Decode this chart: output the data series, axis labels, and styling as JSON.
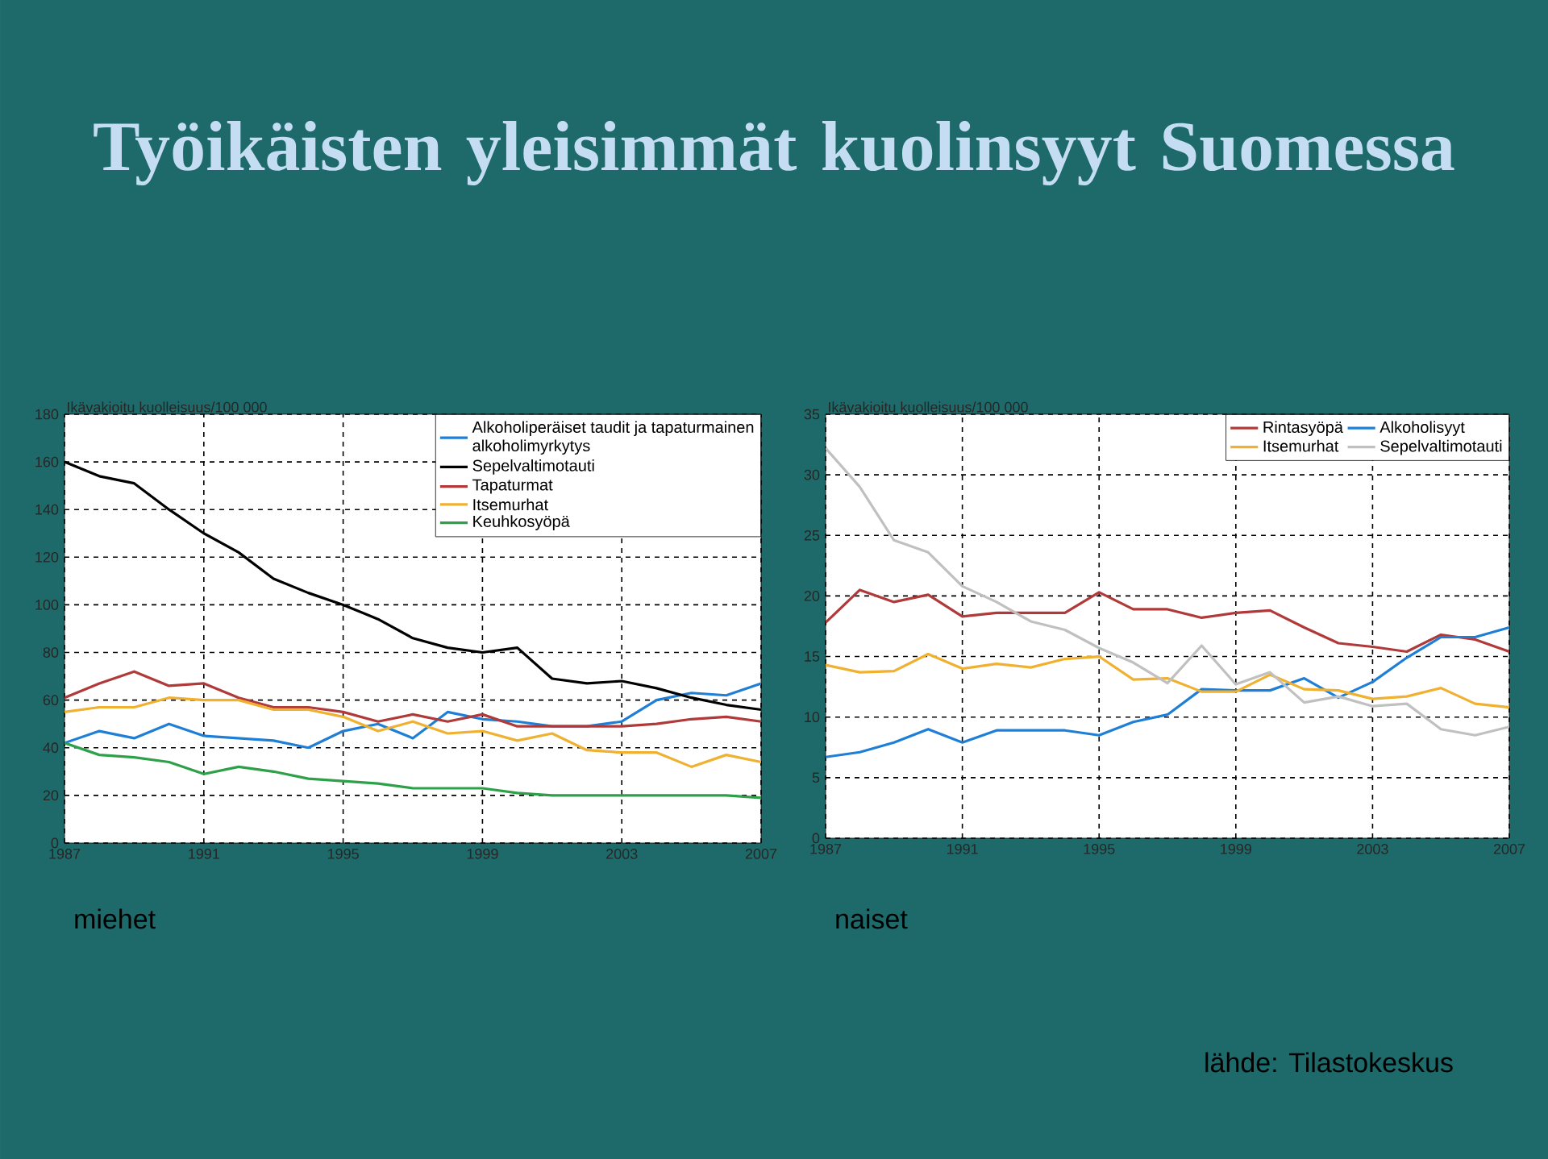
{
  "chart_data": [
    {
      "type": "line",
      "title": "Työikäisten yleisimmät kuolinsyyt Suomessa",
      "ylabel": "Ikävakioitu kuolleisuus/100 000",
      "x": [
        1987,
        1988,
        1989,
        1990,
        1991,
        1992,
        1993,
        1994,
        1995,
        1996,
        1997,
        1998,
        1999,
        2000,
        2001,
        2002,
        2003,
        2004,
        2005,
        2006,
        2007
      ],
      "xlim": [
        1987,
        2007
      ],
      "xticks": [
        1987,
        1991,
        1995,
        1999,
        2003,
        2007
      ],
      "ylim": [
        0,
        180
      ],
      "yticks": [
        0,
        20,
        40,
        60,
        80,
        100,
        120,
        140,
        160,
        180
      ],
      "grid": true,
      "legend": "top right",
      "series": [
        {
          "name": "Alkoholiperäiset taudit ja tapaturmainen alkoholimyrkytys",
          "color": "#1f7fd6",
          "values": [
            42,
            47,
            44,
            50,
            45,
            44,
            43,
            40,
            47,
            50,
            44,
            55,
            52,
            51,
            49,
            49,
            51,
            60,
            63,
            62,
            67
          ]
        },
        {
          "name": "Sepelvaltimotauti",
          "color": "#000000",
          "values": [
            160,
            154,
            151,
            140,
            130,
            122,
            111,
            105,
            100,
            94,
            86,
            82,
            80,
            82,
            69,
            67,
            68,
            65,
            61,
            58,
            56
          ]
        },
        {
          "name": "Tapaturmat",
          "color": "#b03a3a",
          "values": [
            61,
            67,
            72,
            66,
            67,
            61,
            57,
            57,
            55,
            51,
            54,
            51,
            54,
            49,
            49,
            49,
            49,
            50,
            52,
            53,
            51
          ]
        },
        {
          "name": "Itsemurhat",
          "color": "#f0b030",
          "values": [
            55,
            57,
            57,
            61,
            60,
            60,
            56,
            56,
            53,
            47,
            51,
            46,
            47,
            43,
            46,
            39,
            38,
            38,
            32,
            37,
            34
          ]
        },
        {
          "name": "Keuhkosyöpä",
          "color": "#2ea04a",
          "values": [
            42,
            37,
            36,
            34,
            29,
            32,
            30,
            27,
            26,
            25,
            23,
            23,
            23,
            21,
            20,
            20,
            20,
            20,
            20,
            20,
            19
          ]
        }
      ],
      "annotations": [
        "miehet"
      ]
    },
    {
      "type": "line",
      "ylabel": "Ikävakioitu kuolleisuus/100 000",
      "x": [
        1987,
        1988,
        1989,
        1990,
        1991,
        1992,
        1993,
        1994,
        1995,
        1996,
        1997,
        1998,
        1999,
        2000,
        2001,
        2002,
        2003,
        2004,
        2005,
        2006,
        2007
      ],
      "xlim": [
        1987,
        2007
      ],
      "xticks": [
        1987,
        1991,
        1995,
        1999,
        2003,
        2007
      ],
      "ylim": [
        0,
        35
      ],
      "yticks": [
        0,
        5,
        10,
        15,
        20,
        25,
        30,
        35
      ],
      "grid": true,
      "legend": "top right",
      "series": [
        {
          "name": "Rintasyöpä",
          "color": "#b03a3a",
          "values": [
            17.8,
            20.5,
            19.5,
            20.1,
            18.3,
            18.6,
            18.6,
            18.6,
            20.3,
            18.9,
            18.9,
            18.2,
            18.6,
            18.8,
            17.4,
            16.1,
            15.8,
            15.4,
            16.8,
            16.4,
            15.4
          ]
        },
        {
          "name": "Alkoholisyyt",
          "color": "#1f7fd6",
          "values": [
            6.7,
            7.1,
            7.9,
            9.0,
            7.9,
            8.9,
            8.9,
            8.9,
            8.5,
            9.6,
            10.2,
            12.3,
            12.2,
            12.2,
            13.2,
            11.6,
            12.9,
            14.9,
            16.6,
            16.6,
            17.4
          ]
        },
        {
          "name": "Itsemurhat",
          "color": "#f0b030",
          "values": [
            14.3,
            13.7,
            13.8,
            15.2,
            14.0,
            14.4,
            14.1,
            14.8,
            15.0,
            13.1,
            13.2,
            12.1,
            12.1,
            13.5,
            12.3,
            12.2,
            11.5,
            11.7,
            12.4,
            11.1,
            10.8
          ]
        },
        {
          "name": "Sepelvaltimotauti",
          "color": "#c0c0c0",
          "values": [
            32.2,
            29.0,
            24.6,
            23.6,
            20.8,
            19.5,
            17.9,
            17.2,
            15.7,
            14.5,
            12.8,
            15.9,
            12.7,
            13.7,
            11.2,
            11.7,
            10.9,
            11.1,
            9.0,
            8.5,
            9.2
          ]
        }
      ],
      "annotations": [
        "naiset",
        "lähde: Tilastokeskus"
      ]
    }
  ]
}
